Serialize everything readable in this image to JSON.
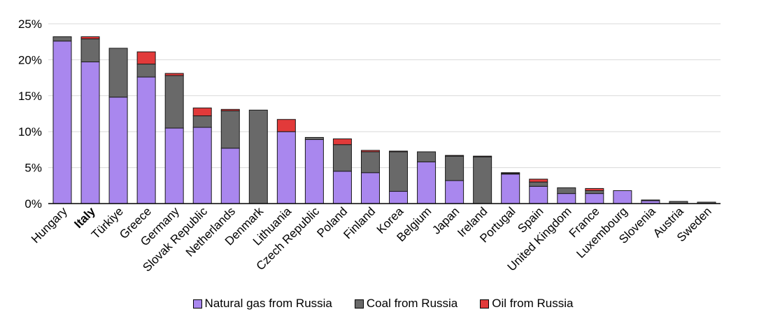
{
  "chart_data": {
    "type": "bar",
    "stacked": true,
    "title": "",
    "xlabel": "",
    "ylabel": "",
    "ylim": [
      0,
      25
    ],
    "yticks": [
      "0%",
      "5%",
      "10%",
      "15%",
      "20%",
      "25%"
    ],
    "ytick_values": [
      0,
      5,
      10,
      15,
      20,
      25
    ],
    "highlight_category": "Italy",
    "categories": [
      "Hungary",
      "Italy",
      "Türkiye",
      "Greece",
      "Germany",
      "Slovak Republic",
      "Netherlands",
      "Denmark",
      "Lithuania",
      "Czech Republic",
      "Poland",
      "Finland",
      "Korea",
      "Belgium",
      "Japan",
      "Ireland",
      "Portugal",
      "Spain",
      "United Kingdom",
      "France",
      "Luxembourg",
      "Slovenia",
      "Austria",
      "Sweden"
    ],
    "series": [
      {
        "name": "Natural gas from Russia",
        "color": "#a987ee",
        "values": [
          22.6,
          19.7,
          14.8,
          17.6,
          10.5,
          10.6,
          7.7,
          0.0,
          10.0,
          8.9,
          4.5,
          4.3,
          1.7,
          5.8,
          3.2,
          0.0,
          4.1,
          2.4,
          1.4,
          1.4,
          1.8,
          0.4,
          0.0,
          0.0
        ]
      },
      {
        "name": "Coal from Russia",
        "color": "#696969",
        "values": [
          0.6,
          3.2,
          6.8,
          1.8,
          7.3,
          1.6,
          5.2,
          13.0,
          0.0,
          0.3,
          3.7,
          2.9,
          5.5,
          1.4,
          3.4,
          6.5,
          0.1,
          0.6,
          0.8,
          0.4,
          0.0,
          0.1,
          0.3,
          0.2
        ]
      },
      {
        "name": "Oil from Russia",
        "color": "#e23a3a",
        "values": [
          0.0,
          0.3,
          0.0,
          1.7,
          0.3,
          1.1,
          0.2,
          0.0,
          1.7,
          0.0,
          0.8,
          0.2,
          0.1,
          0.0,
          0.1,
          0.1,
          0.1,
          0.4,
          0.0,
          0.3,
          0.0,
          0.0,
          0.0,
          0.0
        ]
      }
    ],
    "legend_position": "bottom",
    "grid": true
  }
}
